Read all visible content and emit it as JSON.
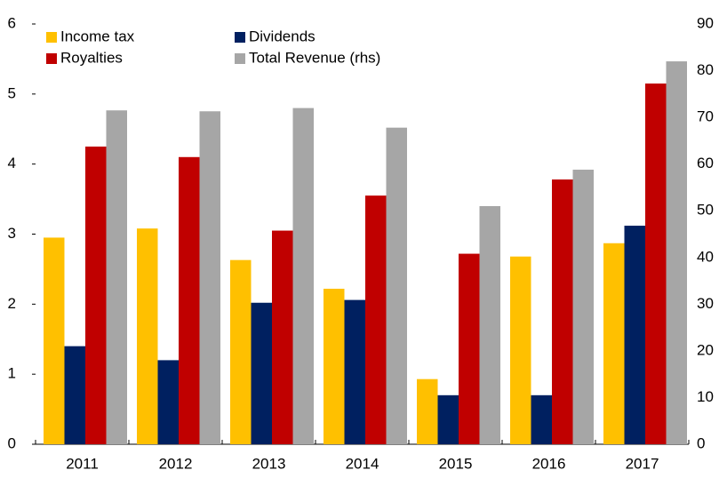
{
  "chart_data": {
    "type": "bar",
    "categories": [
      "2011",
      "2012",
      "2013",
      "2014",
      "2015",
      "2016",
      "2017"
    ],
    "series": [
      {
        "name": "Income tax",
        "color": "#ffc000",
        "values": [
          2.95,
          3.08,
          2.63,
          2.22,
          0.93,
          2.68,
          2.87
        ]
      },
      {
        "name": "Dividends",
        "color": "#002060",
        "values": [
          1.4,
          1.2,
          2.02,
          2.06,
          0.7,
          0.7,
          3.12
        ]
      },
      {
        "name": "Royalties",
        "color": "#c00000",
        "values": [
          4.25,
          4.1,
          3.05,
          3.55,
          2.72,
          3.78,
          5.15
        ]
      },
      {
        "name": "Total Revenue (rhs)",
        "color": "#a6a6a6",
        "axis": "y2",
        "values": [
          71.5,
          71.3,
          72,
          67.8,
          51,
          58.8,
          82
        ]
      }
    ],
    "ylim": [
      0,
      6
    ],
    "yticks": [
      0,
      1,
      2,
      3,
      4,
      5,
      6
    ],
    "y2lim": [
      0,
      90
    ],
    "y2ticks": [
      0,
      10,
      20,
      30,
      40,
      50,
      60,
      70,
      80,
      90
    ],
    "legend": "top-left"
  }
}
